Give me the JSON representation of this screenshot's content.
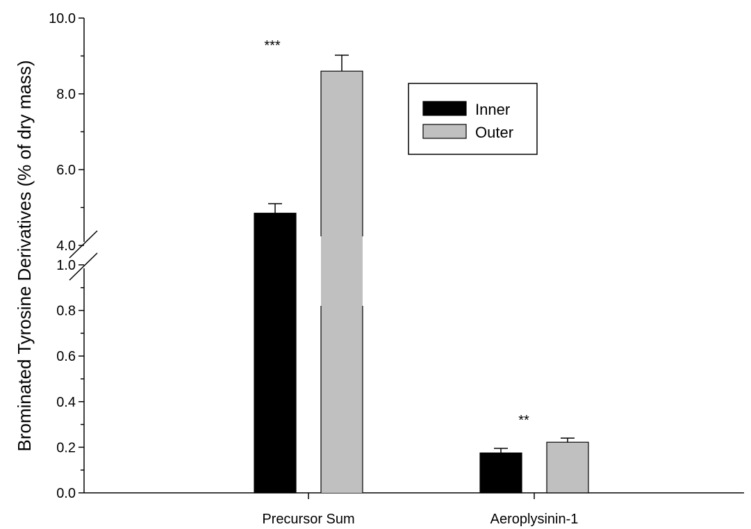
{
  "chart_data": {
    "type": "bar",
    "title": "",
    "xlabel": "",
    "ylabel": "Brominated Tyrosine Derivatives (% of dry mass)",
    "categories": [
      "Precursor Sum",
      "Aeroplysinin-1"
    ],
    "series": [
      {
        "name": "Inner",
        "color": "#000000",
        "values": [
          4.85,
          0.175
        ],
        "errors": [
          0.25,
          0.02
        ]
      },
      {
        "name": "Outer",
        "color": "#c0c0c0",
        "values": [
          8.6,
          0.222
        ],
        "errors": [
          0.42,
          0.018
        ]
      }
    ],
    "y_axis_break": {
      "lower_range": [
        0,
        1.0
      ],
      "upper_range": [
        4.0,
        10.0
      ]
    },
    "lower_ticks": [
      "0.0",
      "0.2",
      "0.4",
      "0.6",
      "0.8",
      "1.0"
    ],
    "upper_ticks": [
      "4.0",
      "6.0",
      "8.0",
      "10.0"
    ],
    "significance": [
      {
        "category": "Precursor Sum",
        "label": "***"
      },
      {
        "category": "Aeroplysinin-1",
        "label": "**"
      }
    ],
    "legend_position": "top-right",
    "grid": false
  }
}
